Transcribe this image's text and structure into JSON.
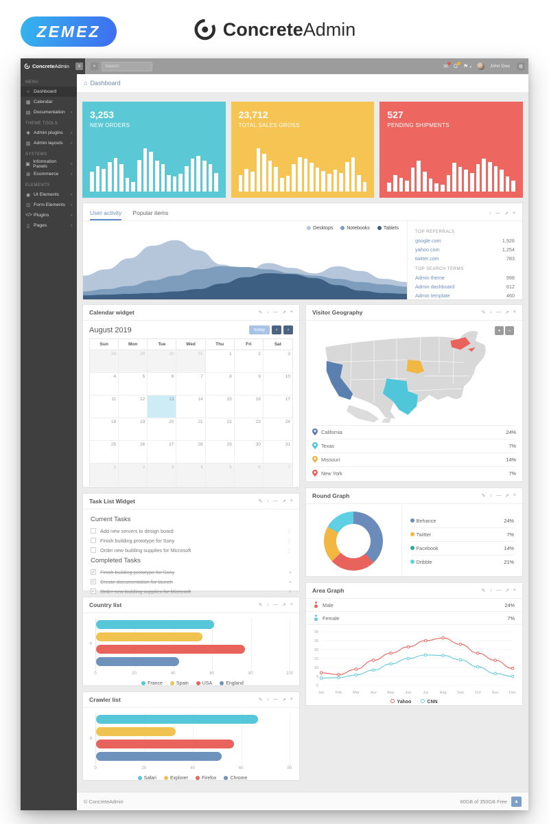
{
  "branding": {
    "zemez": "ZEMEZ",
    "logo_bold": "Concrete",
    "logo_light": "Admin"
  },
  "navbar": {
    "brand_bold": "Concrete",
    "brand_light": "Admin",
    "search_placeholder": "Search",
    "user": "John Doe",
    "badge_colors": {
      "messages": "#e05a50",
      "alerts": "#f0b429"
    }
  },
  "breadcrumb": {
    "label": "Dashboard"
  },
  "ui": {
    "panel_icons": [
      {
        "name": "edit-icon",
        "glyph": "✎"
      },
      {
        "name": "pin-icon",
        "glyph": "↓"
      },
      {
        "name": "collapse-icon",
        "glyph": "—"
      },
      {
        "name": "expand-icon",
        "glyph": "↗"
      },
      {
        "name": "close-icon",
        "glyph": "×"
      }
    ],
    "zoom_in": "+",
    "zoom_out": "−",
    "more_glyph": "⋮",
    "remove_glyph": "×",
    "check_glyph": "✓",
    "burger_glyph": "≡",
    "shuffle_glyph": "×",
    "mail_glyph": "✉",
    "bell_glyph": "Ω",
    "flag_glyph": "⚑",
    "caret_glyph": "▾",
    "gear_glyph": "⚙",
    "home_glyph": "⌂",
    "up_glyph": "▲"
  },
  "sidebar": {
    "sections": [
      {
        "title": "MENU",
        "items": [
          {
            "label": "Dashboard",
            "glyph": "⌂",
            "active": true,
            "arrow": false
          },
          {
            "label": "Calendar",
            "glyph": "▦",
            "arrow": false
          },
          {
            "label": "Documentation",
            "glyph": "▤",
            "arrow": true
          }
        ]
      },
      {
        "title": "THEME TOOLS",
        "items": [
          {
            "label": "Admin plugins",
            "glyph": "✚",
            "arrow": true
          },
          {
            "label": "Admin layouts",
            "glyph": "▥",
            "arrow": true
          }
        ]
      },
      {
        "title": "SYSTEMS",
        "items": [
          {
            "label": "Information Panels",
            "glyph": "▣",
            "arrow": true
          },
          {
            "label": "Ecommerce",
            "glyph": "⊞",
            "arrow": true
          }
        ]
      },
      {
        "title": "ELEMENTS",
        "items": [
          {
            "label": "UI Elements",
            "glyph": "◉",
            "arrow": true
          },
          {
            "label": "Form Elements",
            "glyph": "⊡",
            "arrow": true
          },
          {
            "label": "Plugins",
            "glyph": "</>",
            "arrow": true
          },
          {
            "label": "Pages",
            "glyph": "▯",
            "arrow": true
          }
        ]
      }
    ]
  },
  "stats": [
    {
      "value": "3,253",
      "label": "NEW ORDERS",
      "color": "#5bc8d6",
      "bars": [
        40,
        52,
        46,
        60,
        68,
        56,
        28,
        20,
        64,
        88,
        80,
        62,
        56,
        34,
        30,
        36,
        52,
        66,
        72,
        62,
        56,
        38
      ]
    },
    {
      "value": "23,712",
      "label": "TOTAL SALES GROSS",
      "color": "#f5c452",
      "bars": [
        34,
        46,
        40,
        88,
        76,
        62,
        50,
        28,
        32,
        56,
        70,
        66,
        58,
        48,
        42,
        36,
        44,
        38,
        60,
        70,
        34,
        20
      ]
    },
    {
      "value": "527",
      "label": "PENDING SHIPMENTS",
      "color": "#ee6660",
      "bars": [
        18,
        34,
        28,
        22,
        48,
        62,
        40,
        26,
        16,
        14,
        34,
        58,
        50,
        44,
        38,
        56,
        66,
        60,
        52,
        44,
        30,
        22
      ]
    }
  ],
  "activity": {
    "tabs": [
      {
        "label": "User activity",
        "active": true
      },
      {
        "label": "Popular items",
        "active": false
      }
    ],
    "referrals": {
      "title": "TOP REFERRALS",
      "items": [
        {
          "label": "google.com",
          "value": "1,926"
        },
        {
          "label": "yahoo.com",
          "value": "1,254"
        },
        {
          "label": "twitter.com",
          "value": "783"
        }
      ]
    },
    "search_terms": {
      "title": "TOP SEARCH TERMS",
      "items": [
        {
          "label": "Admin theme",
          "value": "998"
        },
        {
          "label": "Admin dashboard",
          "value": "612"
        },
        {
          "label": "Admin template",
          "value": "460"
        }
      ]
    }
  },
  "calendar": {
    "title": "Calendar widget",
    "month": "August 2019",
    "today_label": "today",
    "prev": "‹",
    "next": "›",
    "dow": [
      "Sun",
      "Mon",
      "Tue",
      "Wed",
      "Thu",
      "Fri",
      "Sat"
    ],
    "cells": [
      {
        "d": "28",
        "muted": true
      },
      {
        "d": "29",
        "muted": true
      },
      {
        "d": "30",
        "muted": true
      },
      {
        "d": "31",
        "muted": true
      },
      {
        "d": "1"
      },
      {
        "d": "2"
      },
      {
        "d": "3"
      },
      {
        "d": "4"
      },
      {
        "d": "5"
      },
      {
        "d": "6"
      },
      {
        "d": "7"
      },
      {
        "d": "8"
      },
      {
        "d": "9"
      },
      {
        "d": "10"
      },
      {
        "d": "11"
      },
      {
        "d": "12"
      },
      {
        "d": "13",
        "selected": true
      },
      {
        "d": "14"
      },
      {
        "d": "15"
      },
      {
        "d": "16"
      },
      {
        "d": "17"
      },
      {
        "d": "18"
      },
      {
        "d": "19"
      },
      {
        "d": "20"
      },
      {
        "d": "21"
      },
      {
        "d": "22"
      },
      {
        "d": "23"
      },
      {
        "d": "24"
      },
      {
        "d": "25"
      },
      {
        "d": "26"
      },
      {
        "d": "27"
      },
      {
        "d": "28"
      },
      {
        "d": "29"
      },
      {
        "d": "30"
      },
      {
        "d": "31"
      },
      {
        "d": "1",
        "muted": true
      },
      {
        "d": "2",
        "muted": true
      },
      {
        "d": "3",
        "muted": true
      },
      {
        "d": "4",
        "muted": true
      },
      {
        "d": "5",
        "muted": true
      },
      {
        "d": "6",
        "muted": true
      },
      {
        "d": "7",
        "muted": true
      }
    ]
  },
  "geography": {
    "title": "Visitor Geography",
    "map_gray": "#d8d8d8",
    "regions": [
      {
        "name": "California",
        "color": "#5b7fae",
        "value": "24%"
      },
      {
        "name": "Texas",
        "color": "#4fc6da",
        "value": "7%"
      },
      {
        "name": "Missouri",
        "color": "#f2b643",
        "value": "14%"
      },
      {
        "name": "New York",
        "color": "#e8635c",
        "value": "7%"
      }
    ]
  },
  "tasks": {
    "title": "Task List Widget",
    "current_title": "Current Tasks",
    "completed_title": "Completed Tasks",
    "current": [
      "Add new servers to design board",
      "Finish building prototype for Sony",
      "Order new building supplies for Microsoft"
    ],
    "completed": [
      "Finish building prototype for Sony",
      "Create documentation for launch",
      "Order new building supplies for Microsoft"
    ]
  },
  "panel_titles": {
    "round": "Round Graph",
    "country": "Country list",
    "area": "Area Graph",
    "crawler": "Crawler list"
  },
  "area_stats": [
    {
      "label": "Male",
      "color": "#e8635c",
      "value": "24%"
    },
    {
      "label": "Female",
      "color": "#62c9dd",
      "value": "7%"
    }
  ],
  "chart_data": [
    {
      "id": "user-activity",
      "type": "area",
      "title": "User activity",
      "legend_position": "top-right",
      "grid": false,
      "ylim": [
        0,
        80
      ],
      "series": [
        {
          "name": "Desktops",
          "color": "#b5c6da",
          "values": [
            30,
            38,
            52,
            68,
            75,
            62,
            44,
            34,
            46,
            40,
            33,
            42,
            36,
            26,
            22
          ]
        },
        {
          "name": "Notebooks",
          "color": "#7e9dbd",
          "values": [
            10,
            13,
            17,
            24,
            30,
            38,
            42,
            41,
            38,
            33,
            30,
            26,
            22,
            19,
            16
          ]
        },
        {
          "name": "Tablets",
          "color": "#3d5f82",
          "values": [
            5,
            6,
            7,
            8,
            10,
            13,
            20,
            28,
            33,
            32,
            27,
            18,
            11,
            8,
            7
          ]
        }
      ]
    },
    {
      "id": "round-graph",
      "type": "pie",
      "title": "Round Graph",
      "labels": [
        "Behance",
        "Twitter",
        "Facebook",
        "Dribble"
      ],
      "values": [
        24,
        7,
        14,
        21
      ],
      "value_suffix": "%",
      "legend_colors": [
        "#6b8cba",
        "#f2b643",
        "#2aa899",
        "#5fd0e4"
      ],
      "arc_values": [
        38,
        25,
        20,
        17
      ],
      "arc_colors": [
        "#6b8cba",
        "#e8635c",
        "#f2b643",
        "#5fd0e4"
      ],
      "legend_position": "right"
    },
    {
      "id": "country-list",
      "type": "bar",
      "orientation": "horizontal",
      "title": "Country list",
      "categories": [
        "France",
        "Spain",
        "USA",
        "England"
      ],
      "values": [
        61,
        55,
        77,
        43
      ],
      "colors": [
        "#56c7d8",
        "#f0c24f",
        "#e8635c",
        "#6d93bd"
      ],
      "xlim": [
        0,
        100
      ],
      "xticks": [
        0,
        20,
        40,
        60,
        80,
        100
      ],
      "ytick": "6",
      "grid": true,
      "legend_position": "bottom"
    },
    {
      "id": "area-graph",
      "type": "line",
      "title": "Area Graph",
      "grid": true,
      "legend_position": "bottom",
      "x": [
        "Jan",
        "Feb",
        "Mar",
        "Apr",
        "May",
        "Jun",
        "Jul",
        "Aug",
        "Sep",
        "Oct",
        "Nov",
        "Dec"
      ],
      "ylim": [
        0,
        30
      ],
      "yticks": [
        0,
        5,
        10,
        15,
        20,
        25,
        30
      ],
      "series": [
        {
          "name": "Yahoo",
          "color": "#e8635c",
          "values": [
            7,
            6,
            9,
            14,
            18,
            21.5,
            25,
            26.5,
            23,
            18,
            14,
            9.5
          ]
        },
        {
          "name": "CNN",
          "color": "#62c9dd",
          "values": [
            4,
            4.3,
            5.8,
            8.5,
            12,
            15,
            17,
            16.7,
            14.3,
            10.3,
            6.6,
            5
          ]
        }
      ]
    },
    {
      "id": "crawler-list",
      "type": "bar",
      "orientation": "horizontal",
      "title": "Crawler list",
      "categories": [
        "Safari",
        "Explorer",
        "Firefox",
        "Chrome"
      ],
      "values": [
        67,
        33,
        57,
        52
      ],
      "colors": [
        "#56c7d8",
        "#f0c24f",
        "#e8635c",
        "#6d93bd"
      ],
      "xlim": [
        0,
        80
      ],
      "xticks": [
        0,
        20,
        40,
        60,
        80
      ],
      "ytick": "6",
      "grid": true,
      "legend_position": "bottom"
    }
  ],
  "footer": {
    "copyright": "© ConcreteAdmin",
    "storage": "60GB of 350GB Free"
  }
}
